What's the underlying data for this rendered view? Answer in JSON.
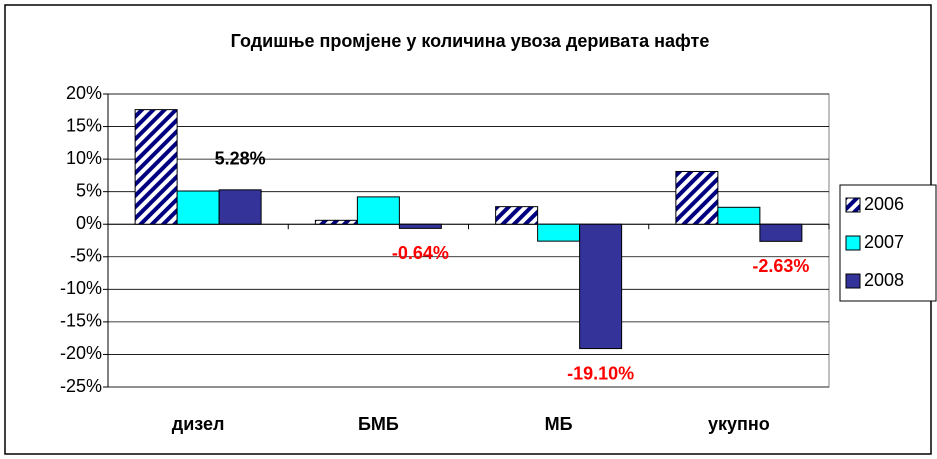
{
  "chart_data": {
    "type": "bar",
    "title": "Годишње промјене у количина увоза деривата нафте",
    "categories": [
      "дизел",
      "БМБ",
      "МБ",
      "укупно"
    ],
    "series": [
      {
        "name": "2006",
        "color": "#000080",
        "pattern": "diagonal-stripes",
        "values": [
          17.6,
          0.6,
          2.7,
          8.1
        ]
      },
      {
        "name": "2007",
        "color": "#00ffff",
        "values": [
          5.1,
          4.2,
          -2.6,
          2.6
        ]
      },
      {
        "name": "2008",
        "color": "#333399",
        "values": [
          5.28,
          -0.64,
          -19.1,
          -2.63
        ],
        "value_labels": [
          "5.28%",
          "-0.64%",
          "-19.10%",
          "-2.63%"
        ]
      }
    ],
    "ylim": [
      -25,
      20
    ],
    "yticks": [
      {
        "value": -25,
        "label": "-25%"
      },
      {
        "value": -20,
        "label": "-20%"
      },
      {
        "value": -15,
        "label": "-15%"
      },
      {
        "value": -10,
        "label": "-10%"
      },
      {
        "value": -5,
        "label": "-5%"
      },
      {
        "value": 0,
        "label": "0%"
      },
      {
        "value": 5,
        "label": "5%"
      },
      {
        "value": 10,
        "label": "10%"
      },
      {
        "value": 15,
        "label": "15%"
      },
      {
        "value": 20,
        "label": "20%"
      }
    ],
    "grid": true,
    "legend": "right"
  }
}
